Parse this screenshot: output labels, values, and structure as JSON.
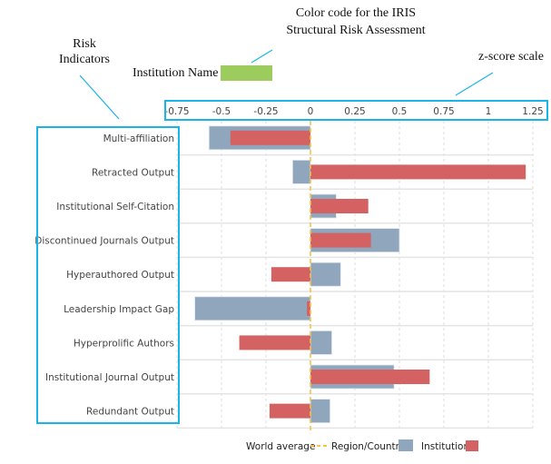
{
  "annotations": {
    "color_code_line1": "Color code for the IRIS",
    "color_code_line2": "Structural Risk Assessment",
    "institution_name": "Institution Name",
    "institution_color": "#9ccc5e",
    "risk_line1": "Risk",
    "risk_line2": "Indicators",
    "zscore": "z-score scale",
    "highlight_color": "#1ab4e8"
  },
  "chart_data": {
    "type": "bar",
    "orientation": "horizontal",
    "categories": [
      "Multi-affiliation",
      "Retracted Output",
      "Institutional Self-Citation",
      "Discontinued Journals Output",
      "Hyperauthored Output",
      "Leadership Impact Gap",
      "Hyperprolific Authors",
      "Institutional Journal Output",
      "Redundant Output"
    ],
    "series": [
      {
        "name": "Region/Country",
        "color": "#8fa6bd",
        "values": [
          -0.57,
          -0.1,
          0.145,
          0.5,
          0.17,
          -0.65,
          0.12,
          0.47,
          0.11
        ]
      },
      {
        "name": "Institution",
        "color": "#d46262",
        "values": [
          -0.45,
          1.21,
          0.325,
          0.34,
          -0.22,
          -0.02,
          -0.4,
          0.67,
          -0.23
        ]
      }
    ],
    "reference_line": {
      "name": "World average",
      "value": 0,
      "color": "#f5c242",
      "style": "dashed"
    },
    "xlim": [
      -0.75,
      1.25
    ],
    "xticks": [
      -0.75,
      -0.5,
      -0.25,
      0,
      0.25,
      0.5,
      0.75,
      1,
      1.25
    ],
    "xtick_labels": [
      "-0.75",
      "-0.5",
      "-0.25",
      "0",
      "0.25",
      "0.5",
      "0.75",
      "1",
      "1.25"
    ],
    "grid": true,
    "legend_position": "bottom"
  }
}
